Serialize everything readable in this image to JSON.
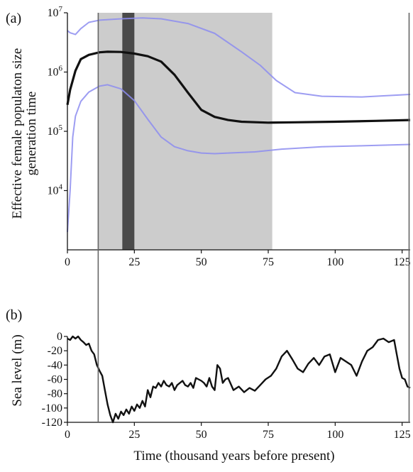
{
  "figure": {
    "panel_a_label": "(a)",
    "panel_b_label": "(b)",
    "shared_xlabel": "Time (thousand years before present)",
    "vertical_markers": [
      11.5,
      128
    ]
  },
  "colors": {
    "median": "#111111",
    "hpd": "#8c8cf0",
    "shade_light": "#cccccc",
    "shade_dark": "#4a4a4a",
    "sea_level": "#111111",
    "marker": "#666666"
  },
  "chart_data": [
    {
      "type": "line",
      "panel": "(a)",
      "ylabel_lines": [
        "Effective female populaton size",
        "generation time"
      ],
      "yscale": "log",
      "xlim": [
        0,
        128
      ],
      "ylim": [
        1000,
        10000000
      ],
      "x_ticks": [
        0,
        25,
        50,
        75,
        100,
        125
      ],
      "x_tick_labels": [
        "0",
        "25",
        "50",
        "75",
        "100",
        "125"
      ],
      "y_ticks": [
        10000,
        100000,
        1000000,
        10000000
      ],
      "y_tick_labels": [
        {
          "base": "10",
          "exp": "4"
        },
        {
          "base": "10",
          "exp": "5"
        },
        {
          "base": "10",
          "exp": "6"
        },
        {
          "base": "10",
          "exp": "7"
        }
      ],
      "shaded_regions": [
        {
          "from": 11.5,
          "to": 76.5,
          "style": "light"
        },
        {
          "from": 20.5,
          "to": 25,
          "style": "dark"
        }
      ],
      "series": [
        {
          "role": "upper-95-hpd",
          "x": [
            0,
            1,
            3,
            5,
            8,
            12,
            20,
            28,
            35,
            45,
            55,
            65,
            72,
            78,
            85,
            95,
            110,
            128
          ],
          "y": [
            5000000,
            4600000,
            4300000,
            5400000,
            6900000,
            7500000,
            7900000,
            8200000,
            7900000,
            6600000,
            4500000,
            2200000,
            1300000,
            720000,
            450000,
            390000,
            380000,
            420000
          ]
        },
        {
          "role": "median",
          "x": [
            0,
            1,
            3,
            5,
            8,
            12,
            15,
            20,
            25,
            30,
            35,
            40,
            45,
            50,
            55,
            60,
            65,
            75,
            85,
            100,
            115,
            128
          ],
          "y": [
            280000,
            500000,
            1050000,
            1650000,
            1950000,
            2150000,
            2200000,
            2180000,
            2050000,
            1850000,
            1500000,
            900000,
            450000,
            230000,
            175000,
            155000,
            145000,
            140000,
            142000,
            145000,
            150000,
            155000
          ]
        },
        {
          "role": "lower-95-hpd",
          "x": [
            0,
            1,
            2,
            3,
            5,
            8,
            12,
            15,
            20,
            25,
            30,
            35,
            40,
            45,
            50,
            55,
            60,
            70,
            80,
            95,
            110,
            128
          ],
          "y": [
            2000,
            10000,
            80000,
            180000,
            320000,
            460000,
            580000,
            610000,
            520000,
            330000,
            160000,
            80000,
            55000,
            47000,
            43000,
            42000,
            43000,
            45000,
            50000,
            55000,
            57000,
            60000
          ]
        }
      ]
    },
    {
      "type": "line",
      "panel": "(b)",
      "ylabel": "Sea level (m)",
      "xlim": [
        0,
        128
      ],
      "ylim": [
        -120,
        0
      ],
      "x_ticks": [
        0,
        25,
        50,
        75,
        100,
        125
      ],
      "x_tick_labels": [
        "0",
        "25",
        "50",
        "75",
        "100",
        "125"
      ],
      "y_ticks": [
        0,
        -20,
        -40,
        -60,
        -80,
        -100,
        -120
      ],
      "y_tick_labels": [
        "0",
        "-20",
        "-40",
        "-60",
        "-80",
        "-100",
        "-120"
      ],
      "series": [
        {
          "role": "sea-level",
          "x": [
            0,
            1,
            2,
            3,
            4,
            5,
            6,
            7,
            8,
            9,
            10,
            11,
            12,
            13,
            14,
            15,
            16,
            17,
            18,
            19,
            20,
            21,
            22,
            23,
            24,
            25,
            26,
            27,
            28,
            29,
            30,
            31,
            32,
            33,
            34,
            35,
            36,
            37,
            38,
            39,
            40,
            41,
            42,
            43,
            44,
            45,
            46,
            47,
            48,
            49,
            50,
            51,
            52,
            53,
            54,
            55,
            56,
            57,
            58,
            59,
            60,
            62,
            64,
            66,
            68,
            70,
            72,
            74,
            76,
            78,
            80,
            82,
            84,
            86,
            88,
            90,
            92,
            94,
            96,
            98,
            100,
            102,
            104,
            106,
            108,
            110,
            112,
            114,
            116,
            118,
            120,
            122,
            123,
            124,
            125,
            126,
            127,
            128
          ],
          "y": [
            -3,
            -5,
            0,
            -3,
            0,
            -5,
            -8,
            -12,
            -10,
            -20,
            -25,
            -40,
            -48,
            -55,
            -75,
            -95,
            -110,
            -120,
            -108,
            -115,
            -105,
            -110,
            -102,
            -108,
            -98,
            -104,
            -95,
            -100,
            -90,
            -98,
            -75,
            -85,
            -70,
            -72,
            -65,
            -70,
            -62,
            -68,
            -70,
            -65,
            -75,
            -68,
            -65,
            -62,
            -68,
            -70,
            -65,
            -72,
            -58,
            -60,
            -62,
            -65,
            -70,
            -58,
            -70,
            -75,
            -40,
            -45,
            -65,
            -60,
            -58,
            -75,
            -70,
            -78,
            -72,
            -76,
            -68,
            -60,
            -55,
            -45,
            -28,
            -20,
            -32,
            -45,
            -50,
            -38,
            -30,
            -40,
            -28,
            -25,
            -50,
            -30,
            -35,
            -40,
            -55,
            -35,
            -20,
            -15,
            -5,
            -3,
            -8,
            -5,
            -25,
            -45,
            -58,
            -60,
            -70,
            -72
          ]
        }
      ]
    }
  ]
}
